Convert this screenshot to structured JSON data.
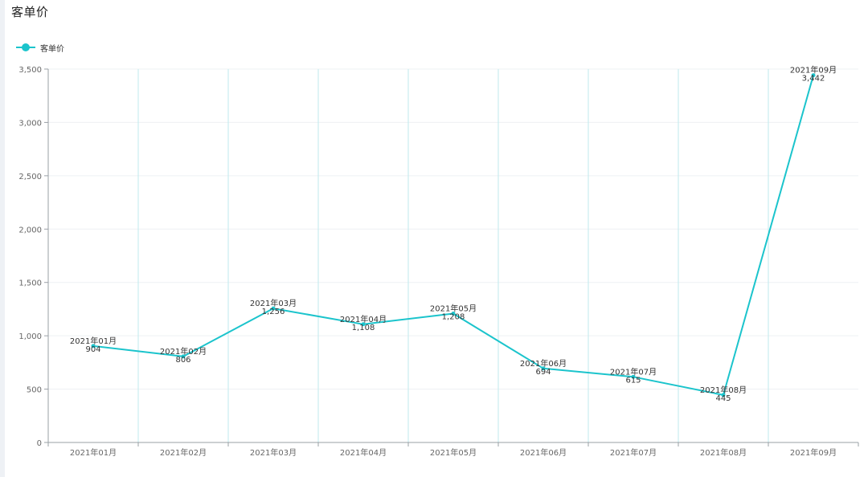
{
  "title": "客单价",
  "colors": {
    "series": "#1bc4cc",
    "grid": "#eef0f3",
    "axis": "#9aa0a6",
    "band": "#bfeaee"
  },
  "chart_data": {
    "type": "line",
    "title": "客单价",
    "categories": [
      "2021年01月",
      "2021年02月",
      "2021年03月",
      "2021年04月",
      "2021年05月",
      "2021年06月",
      "2021年07月",
      "2021年08月",
      "2021年09月"
    ],
    "series": [
      {
        "name": "客单价",
        "values": [
          904,
          806,
          1256,
          1108,
          1208,
          694,
          615,
          445,
          3442
        ]
      }
    ],
    "point_labels": [
      {
        "category": "2021年01月",
        "value": "904"
      },
      {
        "category": "2021年02月",
        "value": "806"
      },
      {
        "category": "2021年03月",
        "value": "1,256"
      },
      {
        "category": "2021年04月",
        "value": "1,108"
      },
      {
        "category": "2021年05月",
        "value": "1,208"
      },
      {
        "category": "2021年06月",
        "value": "694"
      },
      {
        "category": "2021年07月",
        "value": "615"
      },
      {
        "category": "2021年08月",
        "value": "445"
      },
      {
        "category": "2021年09月",
        "value": "3,442"
      }
    ],
    "y_ticks": [
      "0",
      "500",
      "1,000",
      "1,500",
      "2,000",
      "2,500",
      "3,000",
      "3,500"
    ],
    "ylim": [
      0,
      3500
    ],
    "xlabel": "",
    "ylabel": "",
    "grid": true,
    "legend_position": "top-left"
  }
}
